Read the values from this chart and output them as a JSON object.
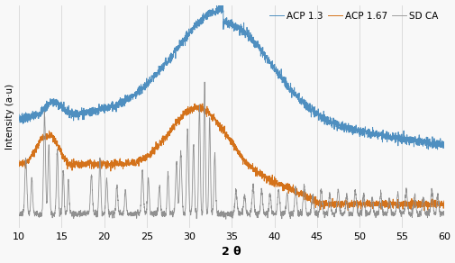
{
  "xlabel": "2 θ",
  "ylabel": "Intensity (a·u)",
  "xlim": [
    10,
    60
  ],
  "xticks": [
    10,
    15,
    20,
    25,
    30,
    35,
    40,
    45,
    50,
    55,
    60
  ],
  "xticklabels": [
    "10",
    "15",
    "20",
    "25",
    "30",
    "35",
    "40",
    "45",
    "50",
    "55",
    "60"
  ],
  "colors": {
    "ACP13": "#4f8fc0",
    "ACP167": "#d4721a",
    "SDCA": "#909090"
  },
  "legend_labels": [
    "ACP 1.3",
    "ACP 1.67",
    "SD CA"
  ],
  "background": "#f8f8f8",
  "grid_color": "#cccccc"
}
